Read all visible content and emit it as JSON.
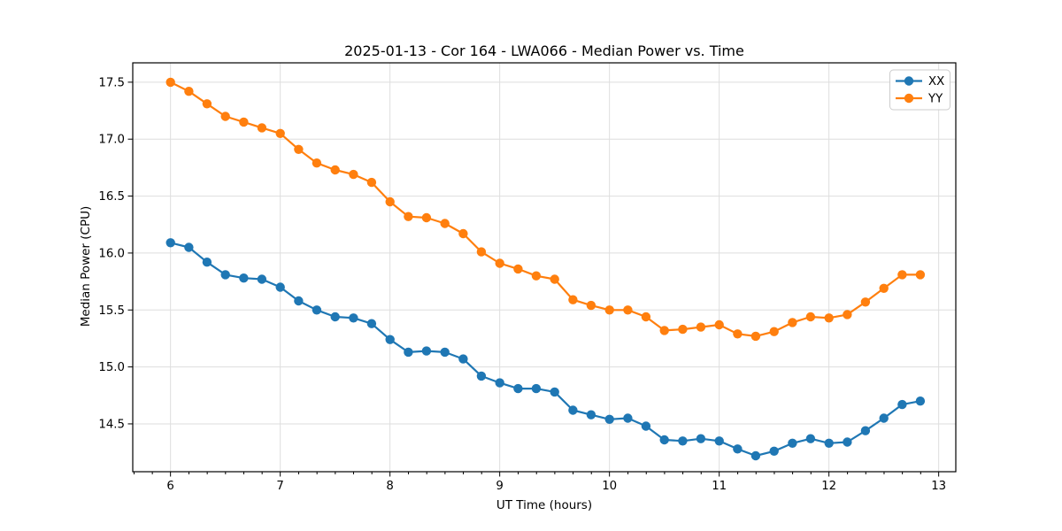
{
  "chart_data": {
    "type": "line",
    "title": "2025-01-13 - Cor 164 - LWA066 - Median Power vs. Time",
    "xlabel": "UT Time (hours)",
    "ylabel": "Median Power (CPU)",
    "xlim": [
      5.656,
      13.156
    ],
    "ylim": [
      14.08,
      17.67
    ],
    "grid": true,
    "legend_position": "upper right",
    "xticks": {
      "values": [
        6,
        7,
        8,
        9,
        10,
        11,
        12,
        13
      ],
      "labels": [
        "6",
        "7",
        "8",
        "9",
        "10",
        "11",
        "12",
        "13"
      ]
    },
    "yticks": {
      "values": [
        14.5,
        15.0,
        15.5,
        16.0,
        16.5,
        17.0,
        17.5
      ],
      "labels": [
        "14.5",
        "15.0",
        "15.5",
        "16.0",
        "16.5",
        "17.0",
        "17.5"
      ]
    },
    "x_minor_tick_interval": 0.1667,
    "x": [
      6.0,
      6.167,
      6.333,
      6.5,
      6.667,
      6.833,
      7.0,
      7.167,
      7.333,
      7.5,
      7.667,
      7.833,
      8.0,
      8.167,
      8.333,
      8.5,
      8.667,
      8.833,
      9.0,
      9.167,
      9.333,
      9.5,
      9.667,
      9.833,
      10.0,
      10.167,
      10.333,
      10.5,
      10.667,
      10.833,
      11.0,
      11.167,
      11.333,
      11.5,
      11.667,
      11.833,
      12.0,
      12.167,
      12.333,
      12.5,
      12.667,
      12.833
    ],
    "series": [
      {
        "name": "XX",
        "color": "#1f77b4",
        "values": [
          16.09,
          16.05,
          15.92,
          15.81,
          15.78,
          15.77,
          15.7,
          15.58,
          15.5,
          15.44,
          15.43,
          15.38,
          15.24,
          15.13,
          15.14,
          15.13,
          15.07,
          14.92,
          14.86,
          14.81,
          14.81,
          14.78,
          14.62,
          14.58,
          14.54,
          14.55,
          14.48,
          14.36,
          14.35,
          14.37,
          14.35,
          14.28,
          14.22,
          14.26,
          14.33,
          14.37,
          14.33,
          14.34,
          14.44,
          14.55,
          14.67,
          14.7
        ]
      },
      {
        "name": "YY",
        "color": "#ff7f0e",
        "values": [
          17.5,
          17.42,
          17.31,
          17.2,
          17.15,
          17.1,
          17.05,
          16.91,
          16.79,
          16.73,
          16.69,
          16.62,
          16.45,
          16.32,
          16.31,
          16.26,
          16.17,
          16.01,
          15.91,
          15.86,
          15.8,
          15.77,
          15.59,
          15.54,
          15.5,
          15.5,
          15.44,
          15.32,
          15.33,
          15.35,
          15.37,
          15.29,
          15.27,
          15.31,
          15.39,
          15.44,
          15.43,
          15.46,
          15.57,
          15.69,
          15.81,
          15.81
        ]
      }
    ],
    "style": {
      "grid_color": "#dedede",
      "spine_color": "#000000",
      "background": "#ffffff"
    }
  }
}
